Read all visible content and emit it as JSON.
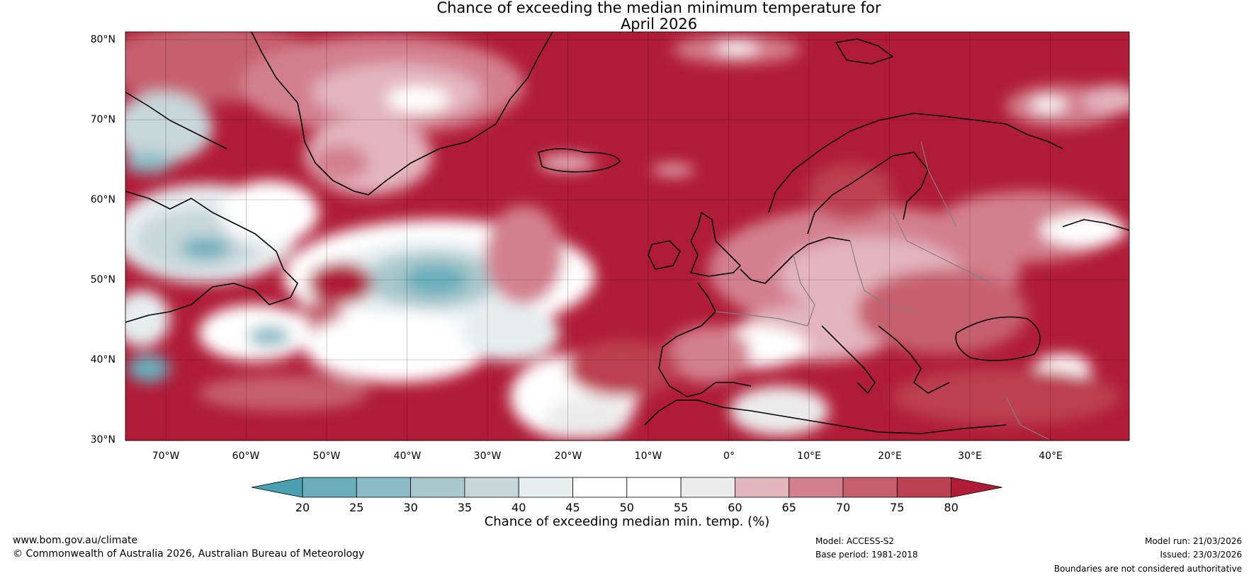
{
  "title": {
    "line1": "Chance of exceeding the median minimum temperature for",
    "line2": "April 2026"
  },
  "map": {
    "latitude_labels": [
      "80°N",
      "70°N",
      "60°N",
      "50°N",
      "40°N",
      "30°N"
    ],
    "longitude_labels": [
      "70°W",
      "60°W",
      "50°W",
      "40°W",
      "30°W",
      "20°W",
      "10°W",
      "0°",
      "10°E",
      "20°E",
      "30°E",
      "40°E"
    ],
    "colors": {
      "land_outline": "#000000",
      "borders": "#808080",
      "ocean_dominant": "#b01c37"
    }
  },
  "colorbar": {
    "ticks": [
      "20",
      "25",
      "30",
      "35",
      "40",
      "45",
      "50",
      "55",
      "60",
      "65",
      "70",
      "75",
      "80"
    ],
    "colors": [
      "#4aa0b2",
      "#6aaebc",
      "#8bbbc6",
      "#a9c8cc",
      "#c7d7da",
      "#e6eef0",
      "#ffffff",
      "#ffffff",
      "#ececec",
      "#e3b5bd",
      "#d3808e",
      "#c6606f",
      "#bc4150",
      "#b01c37"
    ],
    "label": "Chance of exceeding median min. temp. (%)"
  },
  "footer": {
    "website": "www.bom.gov.au/climate",
    "copyright": "© Commonwealth of Australia 2026, Australian Bureau of Meteorology",
    "model": "Model: ACCESS-S2",
    "base_period": "Base period: 1981-2018",
    "model_run": "Model run: 21/03/2026",
    "issued": "Issued: 23/03/2026",
    "disclaimer": "Boundaries are not considered authoritative"
  }
}
